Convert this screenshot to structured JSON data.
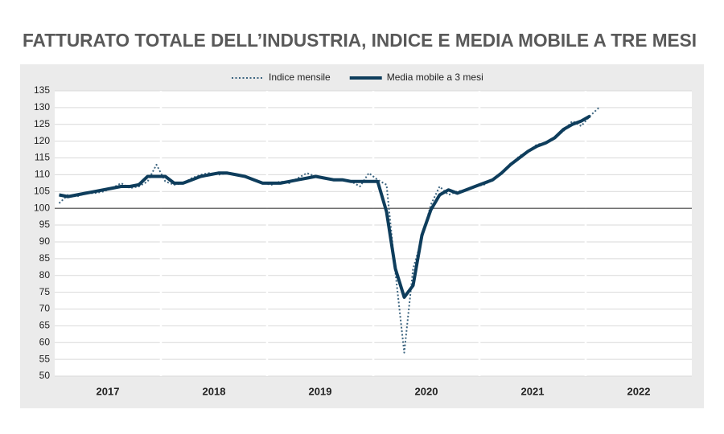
{
  "chart_data": {
    "type": "line",
    "title": "FATTURATO TOTALE DELL’INDUSTRIA, INDICE E MEDIA MOBILE A TRE MESI",
    "categories": [
      null,
      null,
      null,
      null,
      null,
      null,
      "2017",
      null,
      null,
      null,
      null,
      null,
      null,
      null,
      null,
      null,
      null,
      null,
      "2018",
      null,
      null,
      null,
      null,
      null,
      null,
      null,
      null,
      null,
      null,
      null,
      "2019",
      null,
      null,
      null,
      null,
      null,
      null,
      null,
      null,
      null,
      null,
      null,
      "2020",
      null,
      null,
      null,
      null,
      null,
      null,
      null,
      null,
      null,
      null,
      null,
      "2021",
      null,
      null,
      null,
      null,
      null,
      null,
      null,
      null,
      null,
      null,
      null,
      "2022",
      null,
      null,
      null,
      null,
      null
    ],
    "series": [
      {
        "name": "Indice mensile",
        "color": "#3d6580",
        "style": "dotted",
        "values": [
          101.5,
          104,
          103.5,
          104.5,
          104.5,
          105,
          106,
          107.5,
          106,
          106.5,
          108,
          113,
          108,
          107,
          107.5,
          109,
          110,
          110.5,
          110,
          110.5,
          110,
          109.5,
          108.5,
          107.5,
          107,
          108,
          107.5,
          109,
          110.5,
          109.5,
          109,
          108.5,
          108.5,
          108,
          106.5,
          110.5,
          108.5,
          107,
          81,
          57,
          82,
          91,
          101,
          106.5,
          104,
          105,
          105.5,
          106.5,
          107,
          108.5,
          110.5,
          113,
          115.5,
          117,
          119,
          119.5,
          121,
          123,
          126,
          124.5,
          127.5,
          130,
          null,
          null,
          null,
          null,
          null,
          null,
          null,
          null,
          null,
          null
        ]
      },
      {
        "name": "Media mobile a 3 mesi",
        "color": "#0e3d5c",
        "style": "solid",
        "values": [
          104,
          103.5,
          104,
          104.5,
          105,
          105.5,
          106,
          106.5,
          106.5,
          107,
          109.5,
          109.5,
          109.5,
          107.5,
          107.5,
          108.5,
          109.5,
          110,
          110.5,
          110.5,
          110,
          109.5,
          108.5,
          107.5,
          107.5,
          107.5,
          108,
          108.5,
          109,
          109.5,
          109,
          108.5,
          108.5,
          108,
          108,
          108,
          108,
          99,
          82,
          73.5,
          77,
          92,
          99.5,
          104,
          105.5,
          104.5,
          105.5,
          106.5,
          107.5,
          108.5,
          110.5,
          113,
          115,
          117,
          118.5,
          119.5,
          121,
          123.5,
          125,
          126,
          127.5,
          null,
          null,
          null,
          null,
          null,
          null,
          null,
          null,
          null,
          null,
          null
        ]
      }
    ],
    "ylim": [
      50,
      135
    ],
    "yticks": [
      50,
      55,
      60,
      65,
      70,
      75,
      80,
      85,
      90,
      95,
      100,
      105,
      110,
      115,
      120,
      125,
      130,
      135
    ],
    "reference_line": 100,
    "grid": true,
    "legend": "top"
  }
}
